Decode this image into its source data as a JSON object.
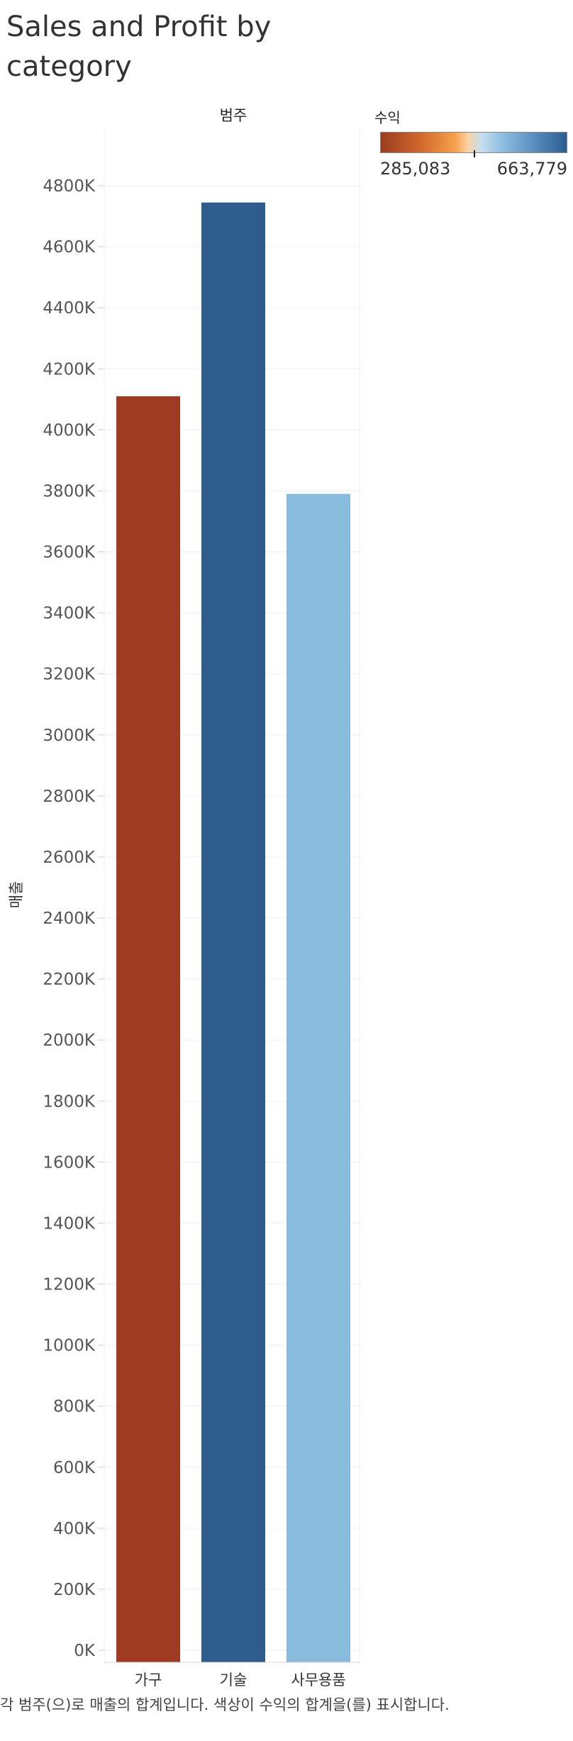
{
  "title": "Sales and Profit by category",
  "chart_data": {
    "type": "bar",
    "column_header": "범주",
    "categories": [
      "가구",
      "기술",
      "사무용품"
    ],
    "values": [
      4110,
      4745,
      3790
    ],
    "value_units": "K",
    "ylabel": "매출",
    "ylim": [
      0,
      4800
    ],
    "yticks": [
      0,
      200,
      400,
      600,
      800,
      1000,
      1200,
      1400,
      1600,
      1800,
      2000,
      2200,
      2400,
      2600,
      2800,
      3000,
      3200,
      3400,
      3600,
      3800,
      4000,
      4200,
      4400,
      4600,
      4800
    ],
    "ytick_labels": [
      "0K",
      "200K",
      "400K",
      "600K",
      "800K",
      "1000K",
      "1200K",
      "1400K",
      "1600K",
      "1800K",
      "2000K",
      "2200K",
      "2400K",
      "2600K",
      "2800K",
      "3000K",
      "3200K",
      "3400K",
      "3600K",
      "3800K",
      "4000K",
      "4200K",
      "4400K",
      "4600K",
      "4800K"
    ],
    "color_by": "수익",
    "colors": [
      "#9e3b22",
      "#2e5d8d",
      "#88bbdc"
    ],
    "color_legend": {
      "title": "수익",
      "min": "285,083",
      "max": "663,779"
    },
    "grid": true
  },
  "caption": "각 범주(으)로 매출의 합계입니다.  색상이 수익의 합계을(를) 표시합니다."
}
